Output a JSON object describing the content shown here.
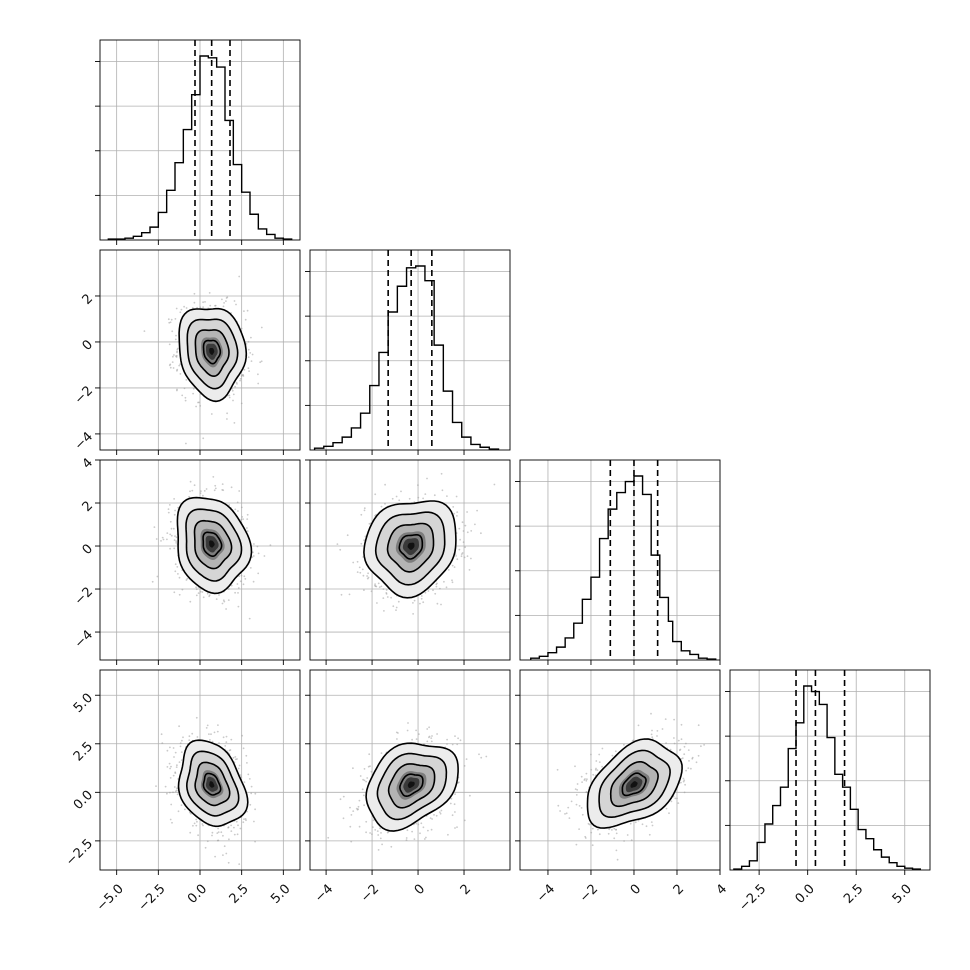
{
  "chart_data": {
    "type": "corner",
    "grid": true,
    "style": {
      "line_color": "#000000",
      "scatter_color": "#9e9e9e",
      "grid_color": "#b0b0b0",
      "background": "#ffffff"
    },
    "x_ranges": [
      [
        -6,
        6
      ],
      [
        -4.7,
        4.0
      ],
      [
        -5.3,
        4.0
      ],
      [
        -4.0,
        6.3
      ]
    ],
    "y_ranges_2d": [
      null,
      [
        -4.7,
        4.0
      ],
      [
        -5.3,
        4.0
      ],
      [
        -4.0,
        6.3
      ]
    ],
    "x_ticks": [
      [
        -5.0,
        -2.5,
        0.0,
        2.5,
        5.0
      ],
      [
        -4,
        -2,
        0,
        2
      ],
      [
        -4,
        -2,
        0,
        2,
        4
      ],
      [
        -2.5,
        0.0,
        2.5,
        5.0
      ]
    ],
    "x_tick_labels": [
      [
        "−5.0",
        "−2.5",
        "0.0",
        "2.5",
        "5.0"
      ],
      [
        "−4",
        "−2",
        "0",
        "2"
      ],
      [
        "−4",
        "−2",
        "0",
        "2",
        "4"
      ],
      [
        "−2.5",
        "0.0",
        "2.5",
        "5.0"
      ]
    ],
    "y_ticks": [
      null,
      [
        -4,
        -2,
        0,
        2
      ],
      [
        -4,
        -2,
        0,
        2,
        4
      ],
      [
        -2.5,
        0.0,
        2.5,
        5.0
      ]
    ],
    "y_tick_labels": [
      null,
      [
        "−4",
        "−2",
        "0",
        "2"
      ],
      [
        "−4",
        "−2",
        "0",
        "2",
        "4"
      ],
      [
        "−2.5",
        "0.0",
        "2.5",
        "5.0"
      ]
    ],
    "diagonal_histograms": [
      {
        "bin_edges": [
          -5.5,
          -5.0,
          -4.5,
          -4.0,
          -3.5,
          -3.0,
          -2.5,
          -2.0,
          -1.5,
          -1.0,
          -0.5,
          0.0,
          0.5,
          1.0,
          1.5,
          2.0,
          2.5,
          3.0,
          3.5,
          4.0,
          4.5,
          5.0,
          5.5
        ],
        "counts": [
          0.005,
          0.005,
          0.01,
          0.02,
          0.04,
          0.07,
          0.15,
          0.27,
          0.42,
          0.6,
          0.79,
          1.0,
          0.99,
          0.94,
          0.65,
          0.41,
          0.26,
          0.14,
          0.06,
          0.03,
          0.01,
          0.005
        ],
        "quantiles": [
          -0.3,
          0.7,
          1.8
        ]
      },
      {
        "bin_edges": [
          -4.5,
          -4.1,
          -3.7,
          -3.3,
          -2.9,
          -2.5,
          -2.1,
          -1.7,
          -1.3,
          -0.9,
          -0.5,
          -0.1,
          0.3,
          0.7,
          1.1,
          1.5,
          1.9,
          2.3,
          2.7,
          3.1,
          3.5
        ],
        "counts": [
          0.01,
          0.02,
          0.04,
          0.07,
          0.12,
          0.2,
          0.35,
          0.53,
          0.75,
          0.89,
          0.99,
          1.0,
          0.92,
          0.57,
          0.32,
          0.15,
          0.07,
          0.03,
          0.015,
          0.005
        ],
        "quantiles": [
          -1.3,
          -0.3,
          0.6
        ]
      },
      {
        "bin_edges": [
          -4.8,
          -4.4,
          -4.0,
          -3.6,
          -3.2,
          -2.8,
          -2.4,
          -2.0,
          -1.6,
          -1.2,
          -0.8,
          -0.4,
          0.0,
          0.4,
          0.8,
          1.2,
          1.6,
          1.8,
          2.2,
          2.6,
          3.0,
          3.4,
          3.8
        ],
        "counts": [
          0.01,
          0.02,
          0.04,
          0.07,
          0.12,
          0.2,
          0.33,
          0.45,
          0.66,
          0.82,
          0.91,
          0.97,
          1.0,
          0.9,
          0.57,
          0.34,
          0.21,
          0.1,
          0.05,
          0.03,
          0.01,
          0.005
        ],
        "quantiles": [
          -1.1,
          0.0,
          1.1
        ]
      },
      {
        "bin_edges": [
          -3.8,
          -3.4,
          -3.0,
          -2.6,
          -2.2,
          -1.8,
          -1.4,
          -1.0,
          -0.6,
          -0.2,
          0.2,
          0.6,
          1.0,
          1.4,
          1.8,
          2.2,
          2.6,
          3.0,
          3.4,
          3.8,
          4.2,
          4.6,
          5.0,
          5.4,
          5.8
        ],
        "counts": [
          0.005,
          0.02,
          0.05,
          0.15,
          0.25,
          0.35,
          0.45,
          0.66,
          0.8,
          1.0,
          0.97,
          0.9,
          0.72,
          0.52,
          0.45,
          0.33,
          0.22,
          0.17,
          0.11,
          0.07,
          0.04,
          0.02,
          0.01,
          0.005
        ],
        "quantiles": [
          -0.6,
          0.4,
          1.9
        ]
      }
    ],
    "pair_densities": [
      {
        "row": 1,
        "col": 0,
        "mean": [
          0.7,
          -0.4
        ],
        "sd": [
          1.0,
          1.0
        ],
        "rho": -0.1
      },
      {
        "row": 2,
        "col": 0,
        "mean": [
          0.7,
          0.1
        ],
        "sd": [
          1.1,
          1.1
        ],
        "rho": -0.15
      },
      {
        "row": 2,
        "col": 1,
        "mean": [
          -0.3,
          0.0
        ],
        "sd": [
          1.0,
          1.1
        ],
        "rho": 0.12
      },
      {
        "row": 3,
        "col": 0,
        "mean": [
          0.7,
          0.4
        ],
        "sd": [
          1.0,
          1.1
        ],
        "rho": -0.25
      },
      {
        "row": 3,
        "col": 1,
        "mean": [
          -0.3,
          0.4
        ],
        "sd": [
          1.0,
          1.1
        ],
        "rho": 0.3
      },
      {
        "row": 3,
        "col": 2,
        "mean": [
          0.0,
          0.4
        ],
        "sd": [
          1.1,
          1.1
        ],
        "rho": 0.4
      }
    ],
    "contour_sigma_levels": [
      0.5,
      1.0,
      1.5,
      2.0
    ]
  }
}
